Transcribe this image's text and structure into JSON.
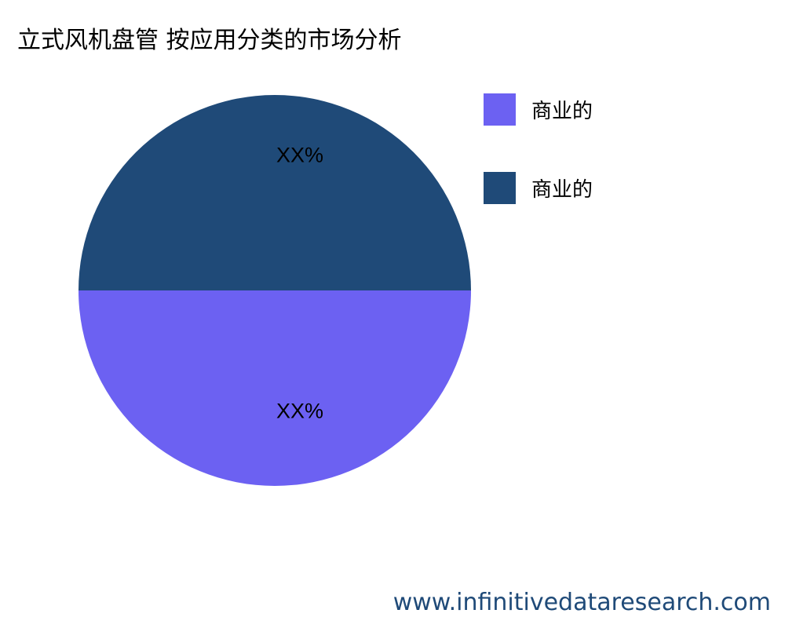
{
  "chart_data": {
    "type": "pie",
    "title": "立式风机盘管 按应用分类的市场分析",
    "slices": [
      {
        "name": "商业的",
        "value": 50,
        "label": "XX%",
        "color": "#6c61f2"
      },
      {
        "name": "商业的",
        "value": 50,
        "label": "XX%",
        "color": "#1f4a78"
      }
    ],
    "legend_position": "right"
  },
  "watermark": "www.infinitivedataresearch.com"
}
